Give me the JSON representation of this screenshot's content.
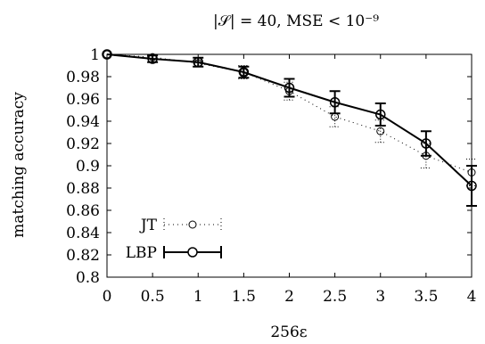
{
  "chart_data": {
    "type": "line",
    "title": "|𝒮| = 40, MSE < 10⁻⁹",
    "xlabel": "256ε",
    "ylabel": "matching accuracy",
    "xlim": [
      0,
      4
    ],
    "ylim": [
      0.8,
      1.0
    ],
    "xticks": [
      "0",
      "0.5",
      "1",
      "1.5",
      "2",
      "2.5",
      "3",
      "3.5",
      "4"
    ],
    "yticks": [
      "0.8",
      "0.82",
      "0.84",
      "0.86",
      "0.88",
      "0.9",
      "0.92",
      "0.94",
      "0.96",
      "0.98",
      "1"
    ],
    "grid": false,
    "legend_position": "bottom-left",
    "x": [
      0,
      0.5,
      1,
      1.5,
      2,
      2.5,
      3,
      3.5,
      4
    ],
    "series": [
      {
        "name": "JT",
        "style": "dotted",
        "color": "#000000",
        "values": [
          1.0,
          0.9975,
          0.992,
          0.984,
          0.967,
          0.944,
          0.931,
          0.909,
          0.894
        ],
        "err_low": [
          0,
          0.0015,
          0.003,
          0.006,
          0.008,
          0.009,
          0.01,
          0.011,
          0.012
        ],
        "err_high": [
          0,
          0.0015,
          0.003,
          0.006,
          0.008,
          0.009,
          0.01,
          0.011,
          0.012
        ]
      },
      {
        "name": "LBP",
        "style": "solid",
        "color": "#000000",
        "values": [
          1.0,
          0.996,
          0.993,
          0.984,
          0.97,
          0.957,
          0.946,
          0.92,
          0.882
        ],
        "err_low": [
          0,
          0.003,
          0.004,
          0.005,
          0.008,
          0.01,
          0.01,
          0.011,
          0.018
        ],
        "err_high": [
          0,
          0.003,
          0.004,
          0.005,
          0.008,
          0.01,
          0.01,
          0.011,
          0.018
        ]
      }
    ]
  }
}
